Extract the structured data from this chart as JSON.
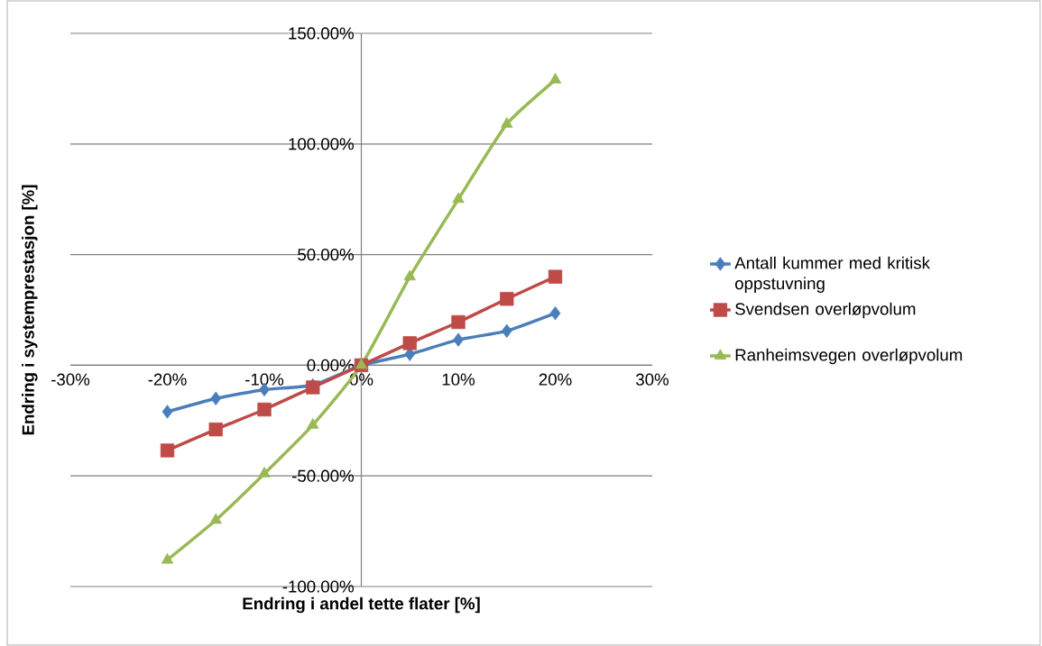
{
  "chart_data": {
    "type": "line",
    "xlabel": "Endring i andel tette flater [%]",
    "ylabel": "Endring i systemprestasjon [%]",
    "x": [
      -20,
      -15,
      -10,
      -5,
      0,
      5,
      10,
      15,
      20
    ],
    "series": [
      {
        "name": "Antall kummer med kritisk oppstuvning",
        "color": "#4a7ebb",
        "marker": "diamond",
        "values": [
          -21,
          -15,
          -11,
          -9,
          0,
          5,
          11.5,
          15.5,
          23.5
        ]
      },
      {
        "name": "Svendsen overløpvolum",
        "color": "#be4b48",
        "marker": "square",
        "values": [
          -38.5,
          -29,
          -20,
          -10,
          0,
          10,
          19.5,
          30,
          40
        ]
      },
      {
        "name": "Ranheimsvegen overløpvolum",
        "color": "#98b954",
        "marker": "triangle",
        "values": [
          -88,
          -70,
          -49,
          -27,
          0,
          40,
          75,
          109,
          129
        ]
      }
    ],
    "xlim": [
      -30,
      30
    ],
    "xticks": [
      {
        "value": -30,
        "label": "-30%"
      },
      {
        "value": -20,
        "label": "-20%"
      },
      {
        "value": -10,
        "label": "-10%"
      },
      {
        "value": 0,
        "label": "0%"
      },
      {
        "value": 10,
        "label": "10%"
      },
      {
        "value": 20,
        "label": "20%"
      },
      {
        "value": 30,
        "label": "30%"
      }
    ],
    "ylim": [
      -100,
      150
    ],
    "yticks": [
      {
        "value": -100,
        "label": "-100.00%"
      },
      {
        "value": -50,
        "label": "-50.00%"
      },
      {
        "value": 0,
        "label": "0.00%"
      },
      {
        "value": 50,
        "label": "50.00%"
      },
      {
        "value": 100,
        "label": "100.00%"
      },
      {
        "value": 150,
        "label": "150.00%"
      }
    ],
    "grid": "y",
    "legend": "right"
  }
}
